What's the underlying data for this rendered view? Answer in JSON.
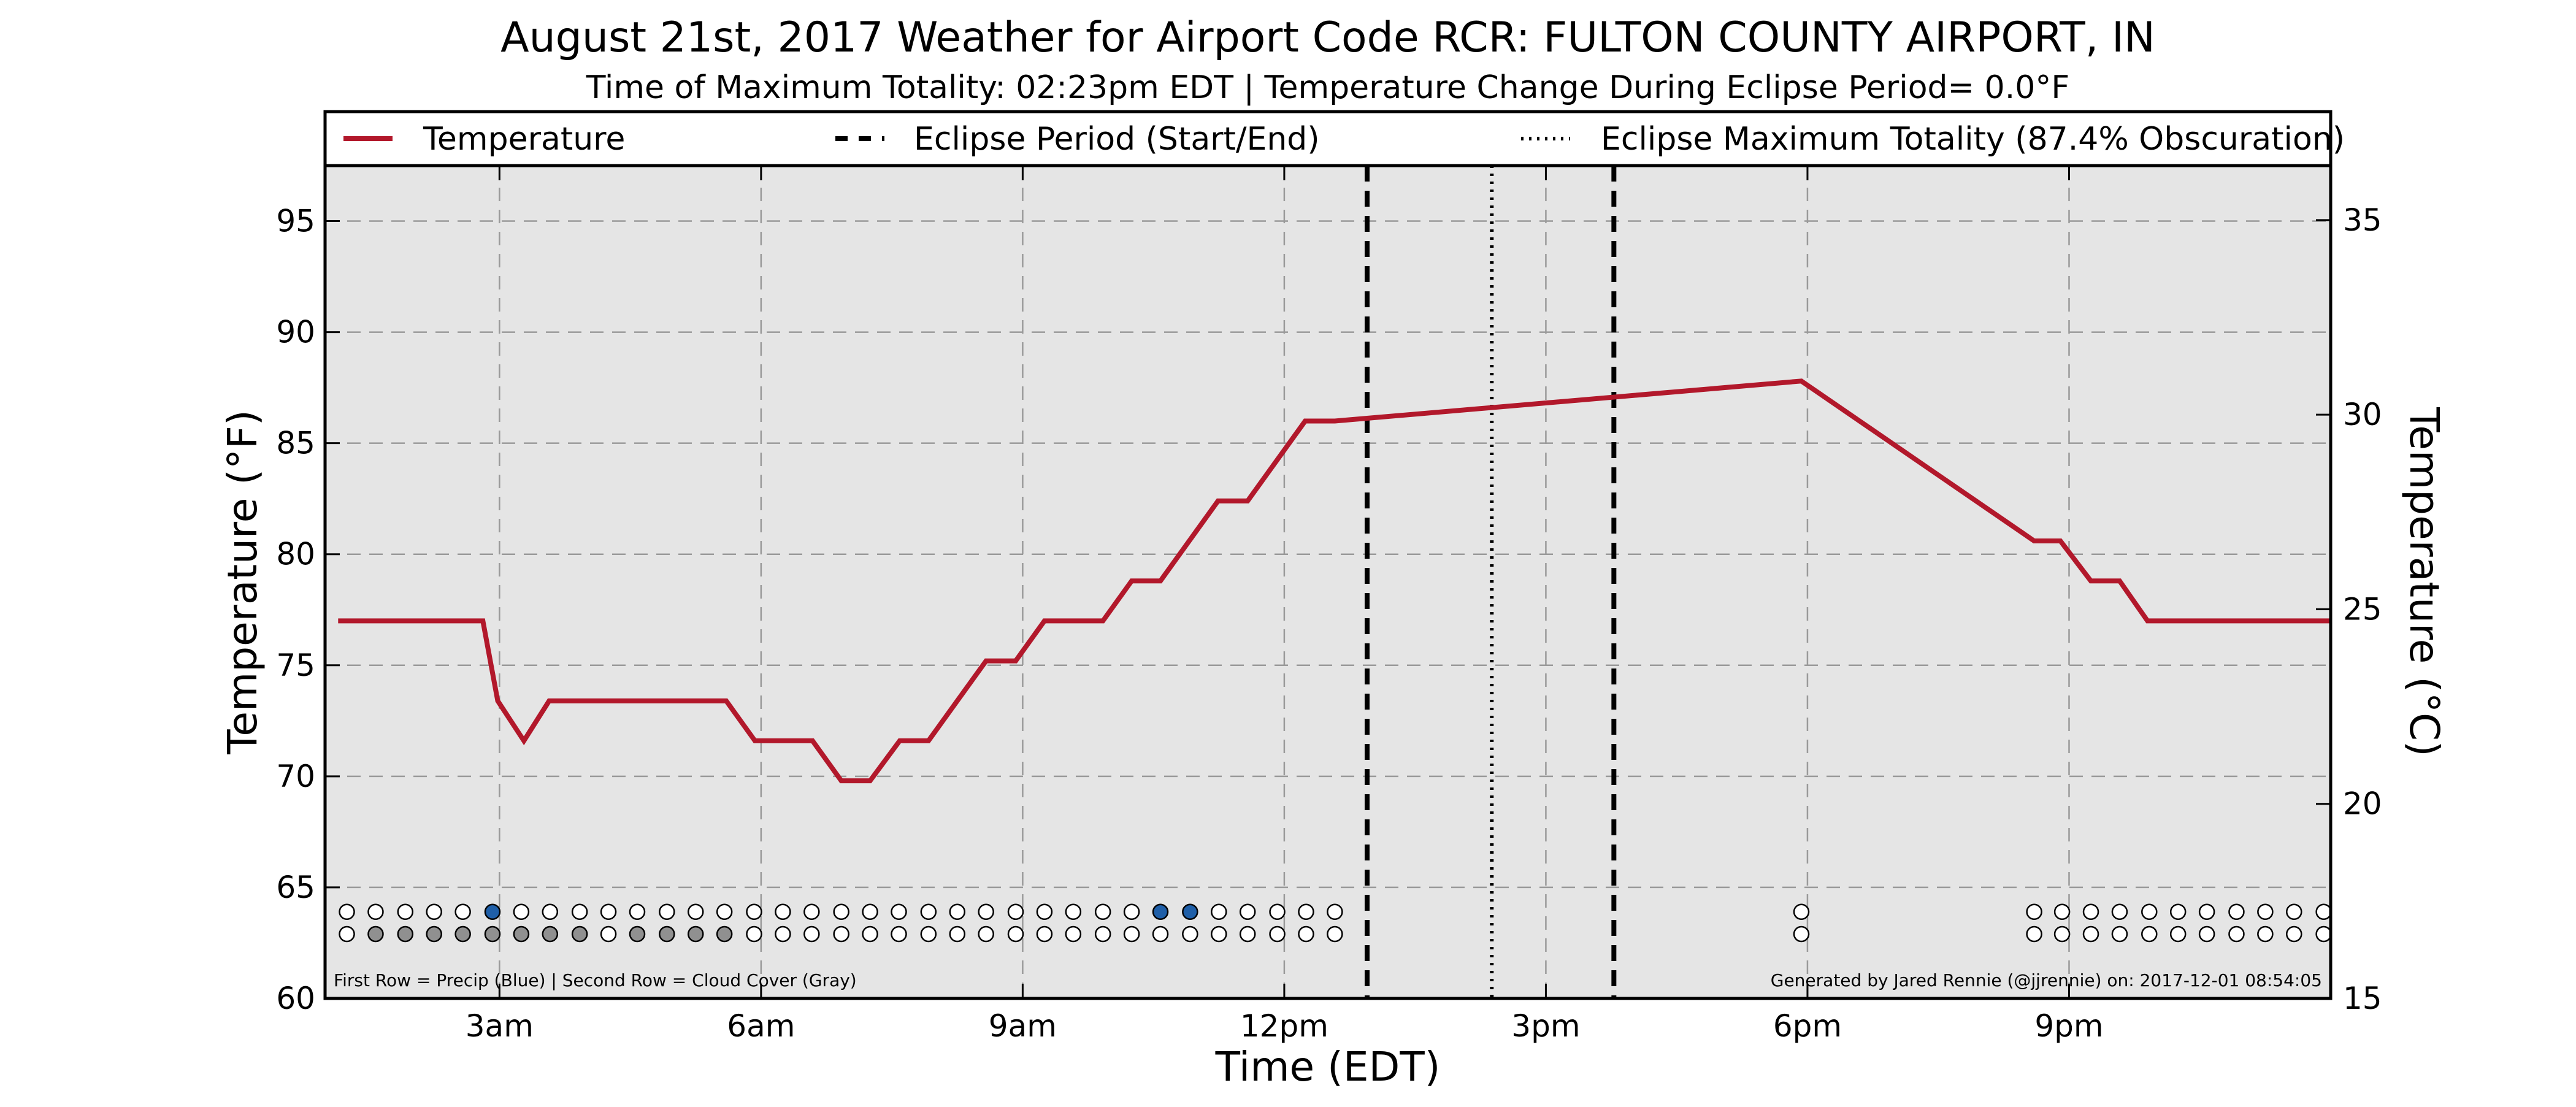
{
  "chart_data": {
    "type": "line",
    "title": "August 21st, 2017 Weather for Airport Code RCR: FULTON COUNTY AIRPORT, IN",
    "subtitle": "Time of Maximum Totality: 02:23pm EDT | Temperature Change During Eclipse Period= 0.0$^\\circ$F",
    "subtitle_display": "Time of Maximum Totality: 02:23pm EDT | Temperature Change During Eclipse Period= 0.0°F",
    "xlabel": "Time (EDT)",
    "ylabel": "Temperature ($^\\circ$F)",
    "ylabel_display": "Temperature (°F)",
    "ylabel_right": "Temperature ($^\\circ$C)",
    "ylabel_right_display": "Temperature (°C)",
    "xlim_hours": [
      1.0,
      24.0
    ],
    "ylim": [
      60,
      97.5
    ],
    "ylim_right_celsius": [
      15.0,
      36.4
    ],
    "yticks": [
      60,
      65,
      70,
      75,
      80,
      85,
      90,
      95
    ],
    "yticks_right": [
      15,
      20,
      25,
      30,
      35
    ],
    "xticks": [
      {
        "hour": 3,
        "label": "3am"
      },
      {
        "hour": 6,
        "label": "6am"
      },
      {
        "hour": 9,
        "label": "9am"
      },
      {
        "hour": 12,
        "label": "12pm"
      },
      {
        "hour": 15,
        "label": "3pm"
      },
      {
        "hour": 18,
        "label": "6pm"
      },
      {
        "hour": 21,
        "label": "9pm"
      }
    ],
    "grid": true,
    "legend_position": "top",
    "series": [
      {
        "name": "Temperature",
        "color": "#b2182b",
        "x_hours": [
          1.15,
          2.81,
          2.98,
          3.28,
          3.57,
          5.6,
          5.93,
          6.59,
          6.92,
          7.25,
          7.59,
          7.92,
          8.58,
          8.92,
          9.25,
          9.92,
          10.25,
          10.58,
          11.24,
          11.58,
          12.24,
          12.58,
          17.93,
          20.6,
          20.9,
          21.25,
          21.58,
          21.9,
          24.0
        ],
        "temperature_f": [
          77.0,
          77.0,
          73.4,
          71.6,
          73.4,
          73.4,
          71.6,
          71.6,
          69.8,
          69.8,
          71.6,
          71.6,
          75.2,
          75.2,
          77.0,
          77.0,
          78.8,
          78.8,
          82.4,
          82.4,
          86.0,
          86.0,
          87.8,
          80.6,
          80.6,
          78.8,
          78.8,
          77.0,
          77.0
        ]
      }
    ],
    "eclipse_period": {
      "name": "Eclipse Period (Start/End)",
      "start_hour": 12.95,
      "end_hour": 15.78,
      "color": "#000000"
    },
    "eclipse_max_totality": {
      "name": "Eclipse Maximum Totality (87.4% Obscuration)",
      "hour": 14.38,
      "color": "#000000"
    },
    "weather_rows": {
      "note": "First Row = Precip (Blue) | Second Row = Cloud Cover (Gray)",
      "colors": {
        "clear": "#ffffff",
        "precip": "#1f5fa8",
        "cloud": "#909090"
      },
      "x_hours": [
        1.25,
        1.58,
        1.92,
        2.25,
        2.58,
        2.92,
        3.25,
        3.58,
        3.92,
        4.25,
        4.58,
        4.92,
        5.25,
        5.58,
        5.92,
        6.25,
        6.58,
        6.92,
        7.25,
        7.58,
        7.92,
        8.25,
        8.58,
        8.92,
        9.25,
        9.58,
        9.92,
        10.25,
        10.58,
        10.92,
        11.25,
        11.58,
        11.92,
        12.25,
        12.58,
        17.93,
        20.6,
        20.92,
        21.25,
        21.58,
        21.92,
        22.25,
        22.58,
        22.92,
        23.25,
        23.58,
        23.92
      ],
      "precip": [
        0,
        0,
        0,
        0,
        0,
        1,
        0,
        0,
        0,
        0,
        0,
        0,
        0,
        0,
        0,
        0,
        0,
        0,
        0,
        0,
        0,
        0,
        0,
        0,
        0,
        0,
        0,
        0,
        1,
        1,
        0,
        0,
        0,
        0,
        0,
        0,
        0,
        0,
        0,
        0,
        0,
        0,
        0,
        0,
        0,
        0,
        0
      ],
      "cloud": [
        0,
        1,
        1,
        1,
        1,
        1,
        1,
        1,
        1,
        0,
        1,
        1,
        1,
        1,
        0,
        0,
        0,
        0,
        0,
        0,
        0,
        0,
        0,
        0,
        0,
        0,
        0,
        0,
        0,
        0,
        0,
        0,
        0,
        0,
        0,
        0,
        0,
        0,
        0,
        0,
        0,
        0,
        0,
        0,
        0,
        0,
        0
      ]
    },
    "credit": "Generated by Jared Rennie (@jjrennie) on: 2017-12-01 08:54:05"
  }
}
